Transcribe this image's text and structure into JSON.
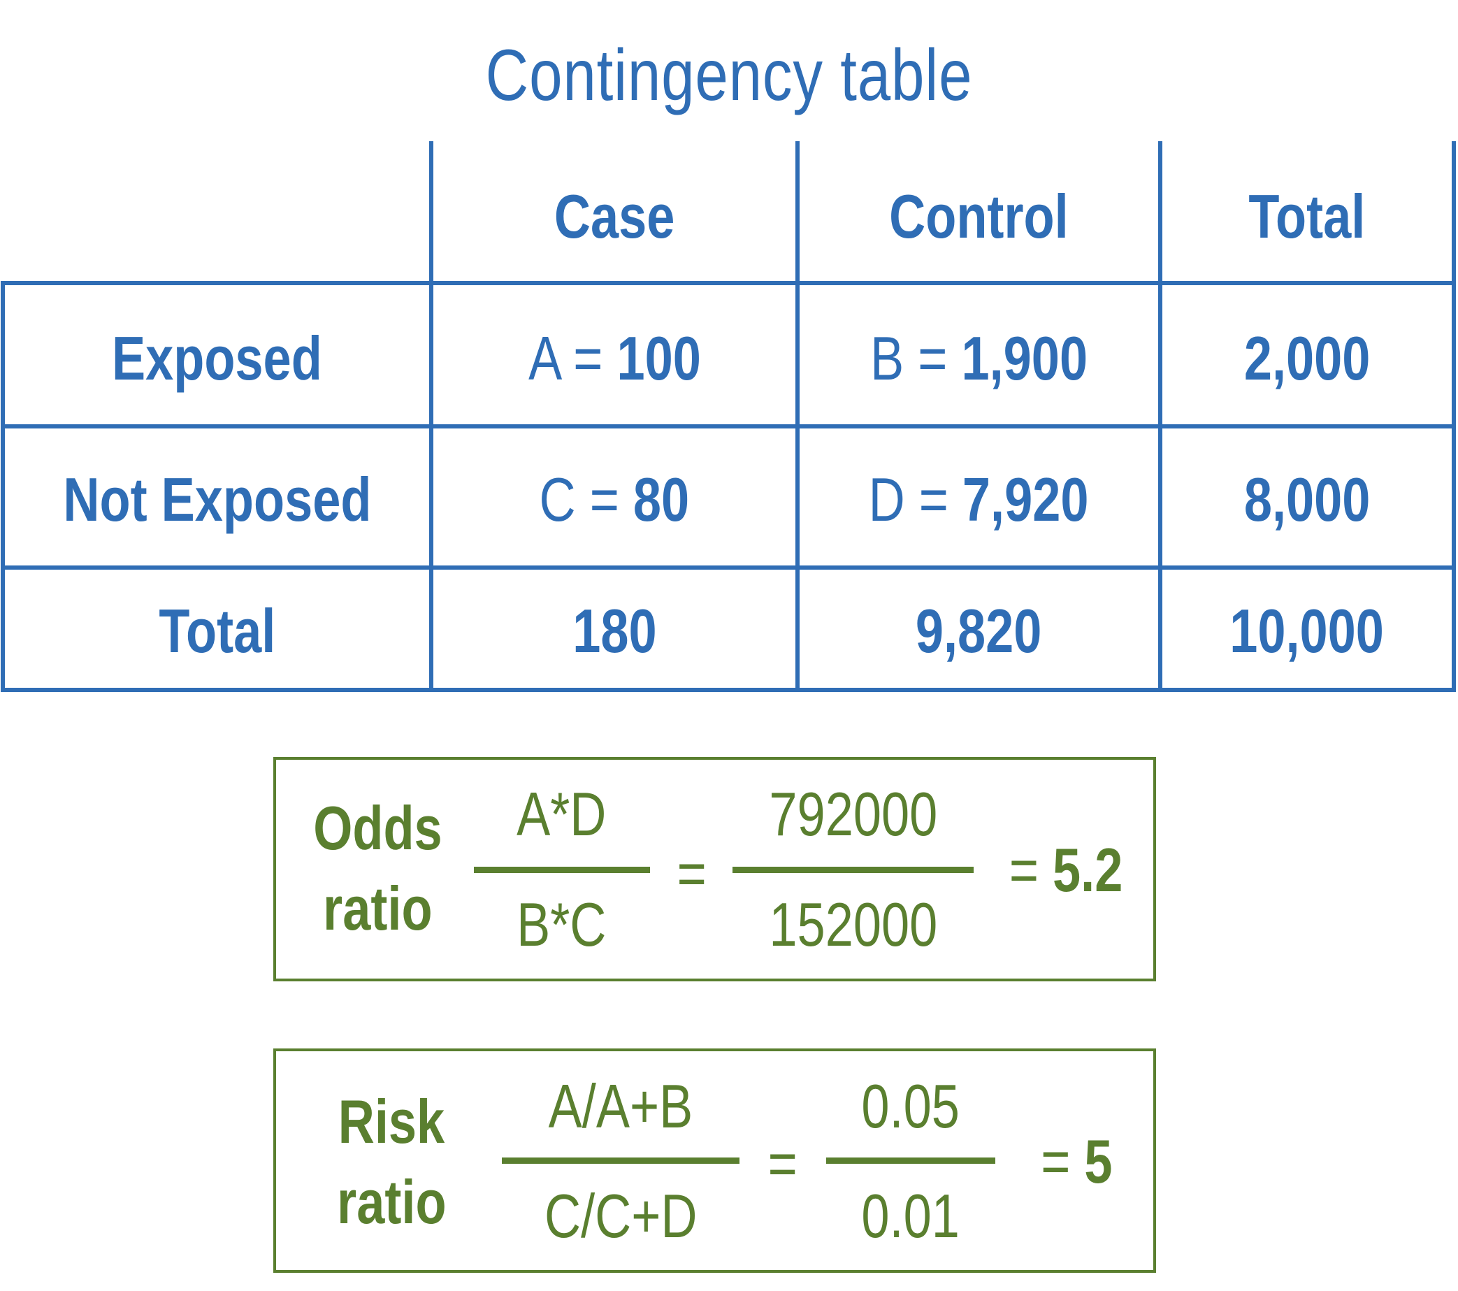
{
  "title": "Contingency table",
  "colors": {
    "table": "#2f6db5",
    "formula": "#5a7f2f",
    "background": "#ffffff"
  },
  "table": {
    "columns": [
      "Case",
      "Control",
      "Total"
    ],
    "rows": [
      {
        "label": "Exposed",
        "cells": [
          {
            "prefix": "A = ",
            "value": "100"
          },
          {
            "prefix": "B = ",
            "value": "1,900"
          },
          {
            "prefix": "",
            "value": "2,000"
          }
        ]
      },
      {
        "label": "Not Exposed",
        "cells": [
          {
            "prefix": "C = ",
            "value": "80"
          },
          {
            "prefix": "D = ",
            "value": "7,920"
          },
          {
            "prefix": "",
            "value": "8,000"
          }
        ]
      },
      {
        "label": "Total",
        "cells": [
          {
            "prefix": "",
            "value": "180"
          },
          {
            "prefix": "",
            "value": "9,820"
          },
          {
            "prefix": "",
            "value": "10,000"
          }
        ]
      }
    ]
  },
  "odds_ratio": {
    "label_line1": "Odds",
    "label_line2": "ratio",
    "formula_numerator": "A*D",
    "formula_denominator": "B*C",
    "equals": "=",
    "value_numerator": "792000",
    "value_denominator": "152000",
    "result_prefix": "= ",
    "result": "5.2"
  },
  "risk_ratio": {
    "label_line1": "Risk",
    "label_line2": "ratio",
    "formula_numerator": "A/A+B",
    "formula_denominator": "C/C+D",
    "equals": "=",
    "value_numerator": "0.05",
    "value_denominator": "0.01",
    "result_prefix": "= ",
    "result": "5"
  }
}
